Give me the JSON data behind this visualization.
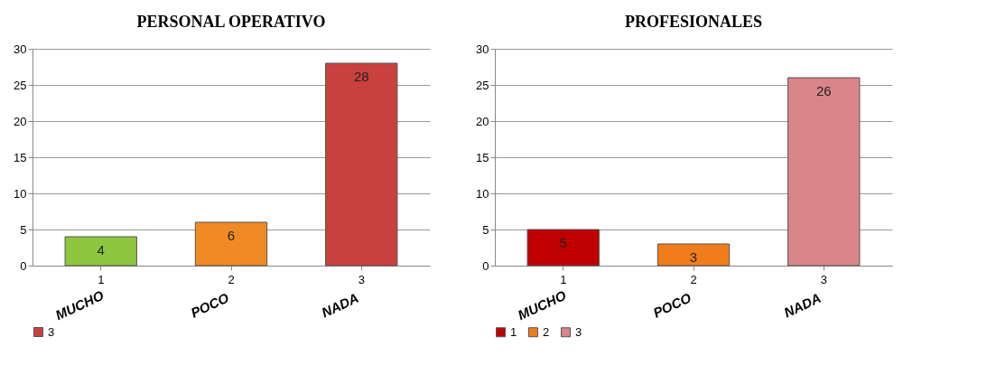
{
  "chart_data": [
    {
      "type": "bar",
      "title": "PERSONAL OPERATIVO",
      "categories": [
        "1",
        "2",
        "3"
      ],
      "series": [
        {
          "color": "#8dc63f",
          "values": [
            4,
            null,
            null
          ]
        },
        {
          "color": "#f08a24",
          "values": [
            null,
            6,
            null
          ]
        },
        {
          "name": "3",
          "color": "#c8413f",
          "values": [
            null,
            null,
            28
          ]
        }
      ],
      "ylim": [
        0,
        30
      ],
      "yticks": [
        0,
        5,
        10,
        15,
        20,
        25,
        30
      ],
      "grid": "y",
      "data_labels": true,
      "legend": "bottom",
      "annotations": [
        "MUCHO",
        "POCO",
        "NADA"
      ]
    },
    {
      "type": "bar",
      "title": "PROFESIONALES",
      "categories": [
        "1",
        "2",
        "3"
      ],
      "series": [
        {
          "name": "1",
          "color": "#c00000",
          "values": [
            5,
            null,
            null
          ]
        },
        {
          "name": "2",
          "color": "#f07d1a",
          "values": [
            null,
            3,
            null
          ]
        },
        {
          "name": "3",
          "color": "#d9858a",
          "values": [
            null,
            null,
            26
          ]
        }
      ],
      "ylim": [
        0,
        30
      ],
      "yticks": [
        0,
        5,
        10,
        15,
        20,
        25,
        30
      ],
      "grid": "y",
      "data_labels": true,
      "legend": "bottom",
      "annotations": [
        "MUCHO",
        "POCO",
        "NADA"
      ]
    }
  ]
}
